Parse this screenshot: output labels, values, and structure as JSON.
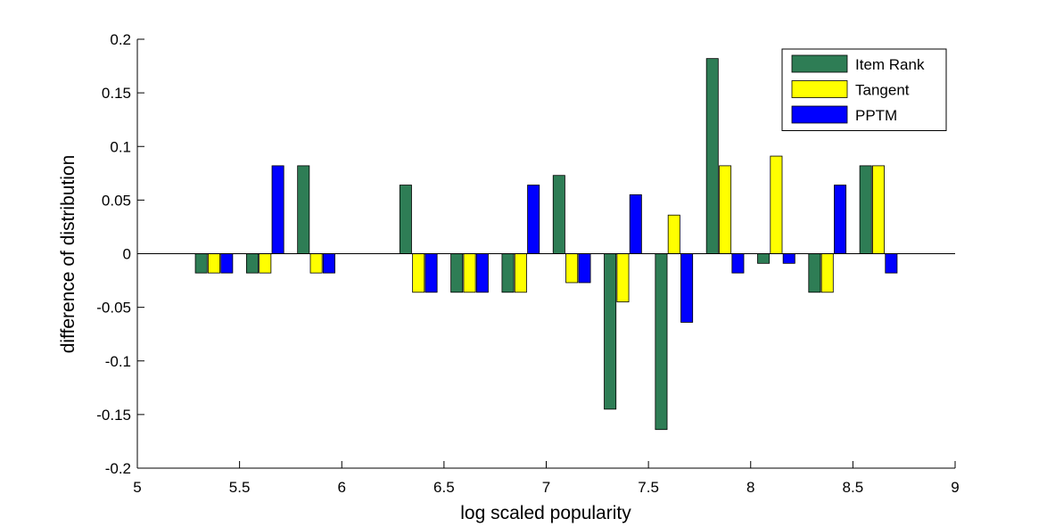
{
  "chart_data": {
    "type": "bar",
    "xlabel": "log scaled popularity",
    "ylabel": "difference of distribution",
    "xlim": [
      5,
      9
    ],
    "ylim": [
      -0.2,
      0.2
    ],
    "xticks": [
      "5",
      "5.5",
      "6",
      "6.5",
      "7",
      "7.5",
      "8",
      "8.5",
      "9"
    ],
    "yticks": [
      "-0.2",
      "-0.15",
      "-0.1",
      "-0.05",
      "0",
      "0.05",
      "0.1",
      "0.15",
      "0.2"
    ],
    "x": [
      5.375,
      5.625,
      5.875,
      6.375,
      6.625,
      6.875,
      7.125,
      7.375,
      7.625,
      7.875,
      8.125,
      8.375,
      8.625
    ],
    "legend_position": "top-right",
    "grid": false,
    "series": [
      {
        "name": "Item Rank",
        "color": "#2e7d55",
        "values": [
          -0.018,
          -0.018,
          0.082,
          0.064,
          -0.036,
          -0.036,
          0.073,
          -0.145,
          -0.164,
          0.182,
          -0.009,
          -0.036,
          0.082
        ]
      },
      {
        "name": "Tangent",
        "color": "#ffff00",
        "values": [
          -0.018,
          -0.018,
          -0.018,
          -0.036,
          -0.036,
          -0.036,
          -0.027,
          -0.045,
          0.036,
          0.082,
          0.091,
          -0.036,
          0.082
        ]
      },
      {
        "name": "PPTM",
        "color": "#0000ff",
        "values": [
          -0.018,
          0.082,
          -0.018,
          -0.036,
          -0.036,
          0.064,
          -0.027,
          0.055,
          -0.064,
          -0.018,
          -0.009,
          0.064,
          -0.018
        ]
      }
    ]
  }
}
